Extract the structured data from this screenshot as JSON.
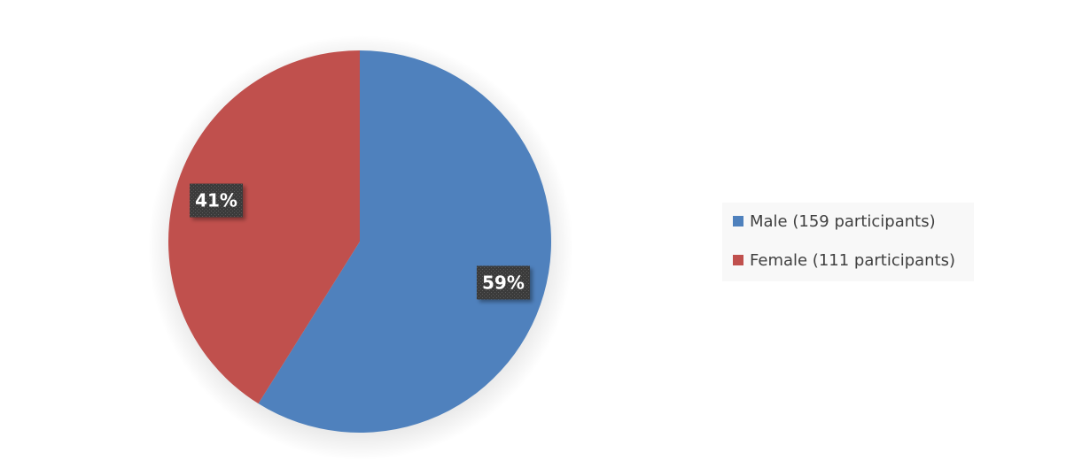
{
  "chart_data": {
    "type": "pie",
    "title": "",
    "slices": [
      {
        "name": "Male (159 participants)",
        "value": 159,
        "percent_label": "59%",
        "color": "#4f81bd"
      },
      {
        "name": "Female (111 participants)",
        "value": 111,
        "percent_label": "41%",
        "color": "#c0504d"
      }
    ],
    "legend_position": "right"
  }
}
